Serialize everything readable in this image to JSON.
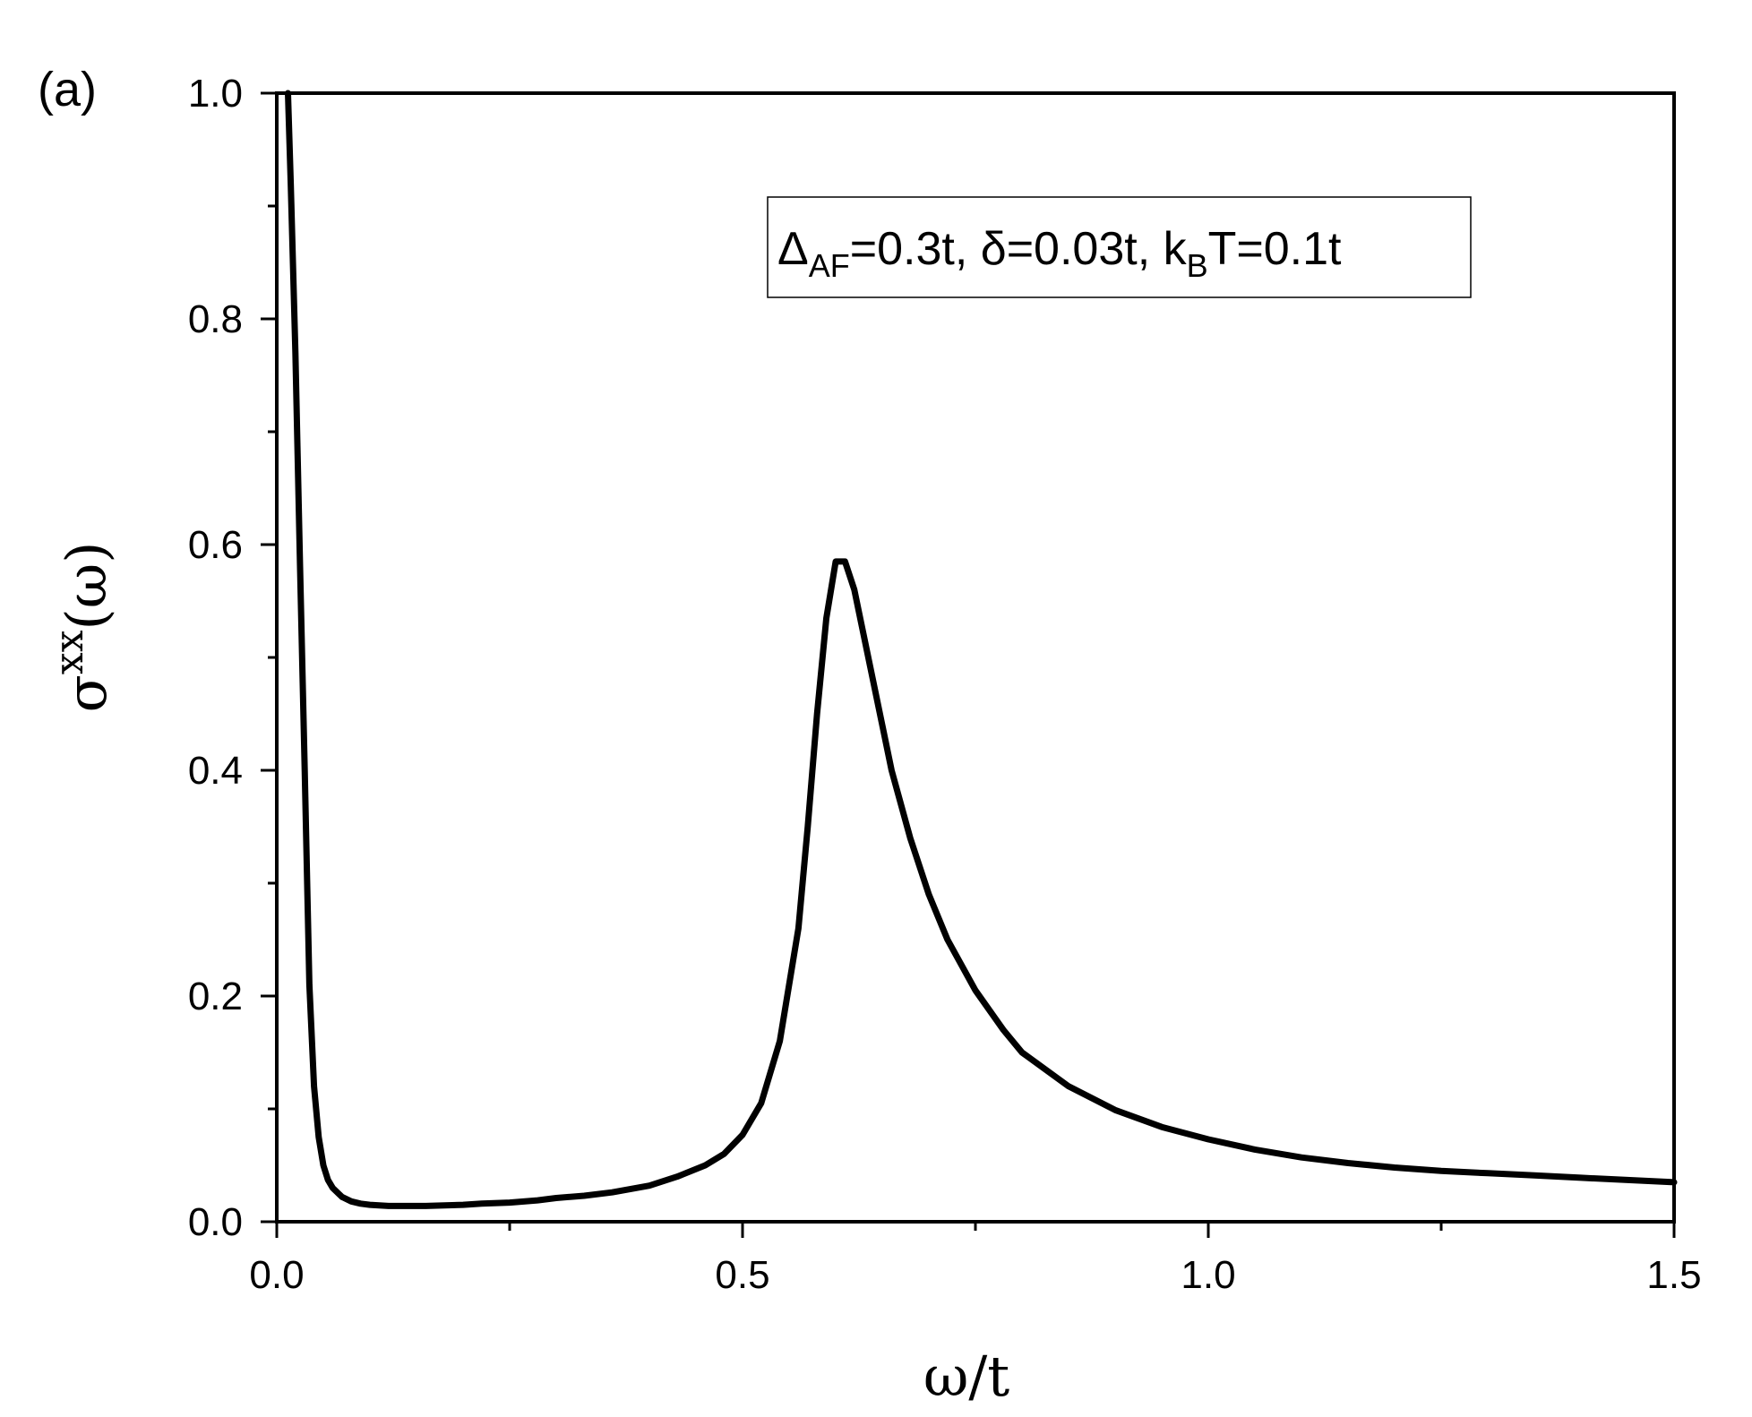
{
  "chart_data": {
    "type": "line",
    "panel_label": "(a)",
    "xlabel": "ω/t",
    "ylabel": {
      "base": "σ",
      "superscript": "xx",
      "suffix": "(ω)"
    },
    "xlim": [
      0,
      1.5
    ],
    "ylim": [
      0,
      1.0
    ],
    "x_ticks": [
      0.0,
      0.5,
      1.0,
      1.5
    ],
    "x_tick_labels": [
      "0.0",
      "0.5",
      "1.0",
      "1.5"
    ],
    "x_minor_ticks": [
      0.25,
      0.75,
      1.25
    ],
    "y_ticks": [
      0.0,
      0.2,
      0.4,
      0.6,
      0.8,
      1.0
    ],
    "y_tick_labels": [
      "0.0",
      "0.2",
      "0.4",
      "0.6",
      "0.8",
      "1.0"
    ],
    "y_minor_ticks": [
      0.1,
      0.3,
      0.5,
      0.7,
      0.9
    ],
    "grid": false,
    "annotation": {
      "parts": [
        {
          "text": "Δ",
          "style": "normal"
        },
        {
          "text": "AF",
          "style": "sub"
        },
        {
          "text": "=0.3t, δ=0.03t, k",
          "style": "normal"
        },
        {
          "text": "B",
          "style": "sub"
        },
        {
          "text": "T=0.1t",
          "style": "normal"
        }
      ],
      "placement": "top-right"
    },
    "series": [
      {
        "color": "#000000",
        "x": [
          0.012,
          0.015,
          0.02,
          0.025,
          0.03,
          0.035,
          0.04,
          0.045,
          0.05,
          0.055,
          0.06,
          0.07,
          0.08,
          0.09,
          0.1,
          0.12,
          0.14,
          0.16,
          0.18,
          0.2,
          0.22,
          0.25,
          0.28,
          0.3,
          0.33,
          0.36,
          0.4,
          0.43,
          0.46,
          0.48,
          0.5,
          0.52,
          0.54,
          0.56,
          0.57,
          0.58,
          0.59,
          0.6,
          0.61,
          0.62,
          0.63,
          0.64,
          0.65,
          0.66,
          0.68,
          0.7,
          0.72,
          0.75,
          0.78,
          0.8,
          0.85,
          0.9,
          0.95,
          1.0,
          1.05,
          1.1,
          1.15,
          1.2,
          1.25,
          1.3,
          1.35,
          1.4,
          1.45,
          1.5
        ],
        "y": [
          1.0,
          0.92,
          0.77,
          0.58,
          0.4,
          0.21,
          0.12,
          0.075,
          0.05,
          0.037,
          0.03,
          0.022,
          0.018,
          0.016,
          0.015,
          0.014,
          0.014,
          0.014,
          0.0145,
          0.015,
          0.016,
          0.017,
          0.019,
          0.021,
          0.023,
          0.026,
          0.032,
          0.04,
          0.05,
          0.06,
          0.077,
          0.105,
          0.16,
          0.26,
          0.35,
          0.45,
          0.535,
          0.585,
          0.585,
          0.56,
          0.52,
          0.48,
          0.44,
          0.4,
          0.34,
          0.29,
          0.25,
          0.205,
          0.17,
          0.15,
          0.12,
          0.099,
          0.084,
          0.073,
          0.064,
          0.057,
          0.052,
          0.048,
          0.045,
          0.043,
          0.041,
          0.039,
          0.037,
          0.035
        ]
      }
    ]
  }
}
